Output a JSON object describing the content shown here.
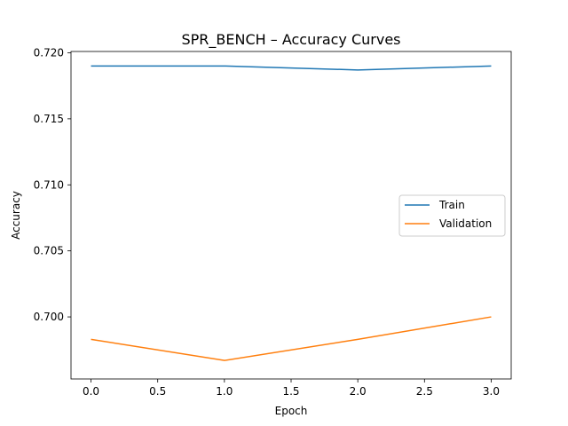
{
  "chart_data": {
    "type": "line",
    "title": "SPR_BENCH – Accuracy Curves",
    "xlabel": "Epoch",
    "ylabel": "Accuracy",
    "x": [
      0,
      1,
      2,
      3
    ],
    "xlim": [
      -0.15,
      3.15
    ],
    "ylim": [
      0.6953,
      0.7201
    ],
    "xticks": [
      0.0,
      0.5,
      1.0,
      1.5,
      2.0,
      2.5,
      3.0
    ],
    "xtick_labels": [
      "0.0",
      "0.5",
      "1.0",
      "1.5",
      "2.0",
      "2.5",
      "3.0"
    ],
    "yticks": [
      0.7,
      0.705,
      0.71,
      0.715,
      0.72
    ],
    "ytick_labels": [
      "0.700",
      "0.705",
      "0.710",
      "0.715",
      "0.720"
    ],
    "grid": false,
    "legend_position": "center-right",
    "series": [
      {
        "name": "Train",
        "color": "#1f77b4",
        "values": [
          0.719,
          0.719,
          0.7187,
          0.719
        ]
      },
      {
        "name": "Validation",
        "color": "#ff7f0e",
        "values": [
          0.6983,
          0.6967,
          0.6983,
          0.7
        ]
      }
    ]
  }
}
